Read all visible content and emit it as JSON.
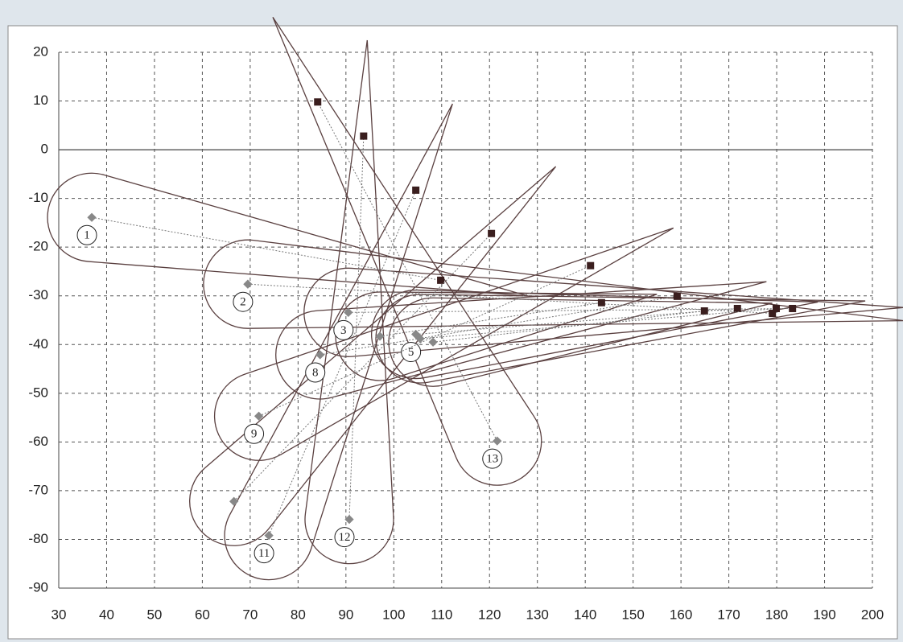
{
  "chart_data": {
    "type": "scatter",
    "xlim": [
      30,
      200
    ],
    "ylim": [
      -90,
      20
    ],
    "xticks": [
      30,
      40,
      50,
      60,
      70,
      80,
      90,
      100,
      110,
      120,
      130,
      140,
      150,
      160,
      170,
      180,
      190,
      200
    ],
    "yticks": [
      20,
      10,
      0,
      -10,
      -20,
      -30,
      -40,
      -50,
      -60,
      -70,
      -80,
      -90
    ],
    "grid": true,
    "start_color": "#888888",
    "end_color": "#3a1e1e",
    "link_color": "#777777",
    "outline_color": "#5a4040",
    "labels": [
      "1",
      "2",
      "3",
      "5",
      "8",
      "9",
      null,
      "11",
      "12",
      "13",
      null,
      null,
      null
    ],
    "start_x": [
      36.9,
      69.5,
      90.5,
      104.6,
      84.6,
      71.8,
      66.6,
      73.9,
      90.7,
      121.6,
      97.1,
      108.2,
      105.5
    ],
    "start_y": [
      -13.9,
      -27.6,
      -33.4,
      -37.9,
      -42.1,
      -54.7,
      -72.2,
      -79.2,
      -75.9,
      -59.8,
      -38.3,
      -39.5,
      -38.8
    ],
    "end_x": [
      109.8,
      179.1,
      183.3,
      171.8,
      159.2,
      141.1,
      120.4,
      104.6,
      93.7,
      84.1,
      143.4,
      164.9,
      179.9
    ],
    "end_y": [
      -26.8,
      -33.6,
      -32.6,
      -32.6,
      -30.1,
      -23.8,
      -17.2,
      -8.3,
      2.8,
      9.8,
      -31.4,
      -33.1,
      -32.6
    ]
  }
}
